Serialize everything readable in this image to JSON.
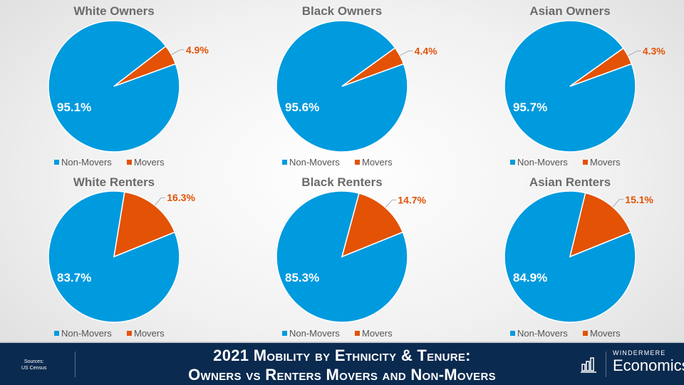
{
  "chart_data": [
    {
      "type": "pie",
      "title": "White Owners",
      "categories": [
        "Non-Movers",
        "Movers"
      ],
      "values": [
        95.1,
        4.9
      ],
      "labels": [
        "95.1%",
        "4.9%"
      ]
    },
    {
      "type": "pie",
      "title": "Black Owners",
      "categories": [
        "Non-Movers",
        "Movers"
      ],
      "values": [
        95.6,
        4.4
      ],
      "labels": [
        "95.6%",
        "4.4%"
      ]
    },
    {
      "type": "pie",
      "title": "Asian Owners",
      "categories": [
        "Non-Movers",
        "Movers"
      ],
      "values": [
        95.7,
        4.3
      ],
      "labels": [
        "95.7%",
        "4.3%"
      ]
    },
    {
      "type": "pie",
      "title": "White Renters",
      "categories": [
        "Non-Movers",
        "Movers"
      ],
      "values": [
        83.7,
        16.3
      ],
      "labels": [
        "83.7%",
        "16.3%"
      ]
    },
    {
      "type": "pie",
      "title": "Black Renters",
      "categories": [
        "Non-Movers",
        "Movers"
      ],
      "values": [
        85.3,
        14.7
      ],
      "labels": [
        "85.3%",
        "14.7%"
      ]
    },
    {
      "type": "pie",
      "title": "Asian Renters",
      "categories": [
        "Non-Movers",
        "Movers"
      ],
      "values": [
        84.9,
        15.1
      ],
      "labels": [
        "84.9%",
        "15.1%"
      ]
    }
  ],
  "colors": {
    "non_movers": "#009ADE",
    "movers": "#E35205",
    "title": "#6b6b6b"
  },
  "footer": {
    "sources_label": "Sources:",
    "sources_value": "US Census",
    "title_line1": "2021 Mobility by Ethnicity & Tenure:",
    "title_line2": "Owners vs Renters Movers and Non-Movers",
    "brand_top": "WINDERMERE",
    "brand_bottom": "Economics"
  }
}
